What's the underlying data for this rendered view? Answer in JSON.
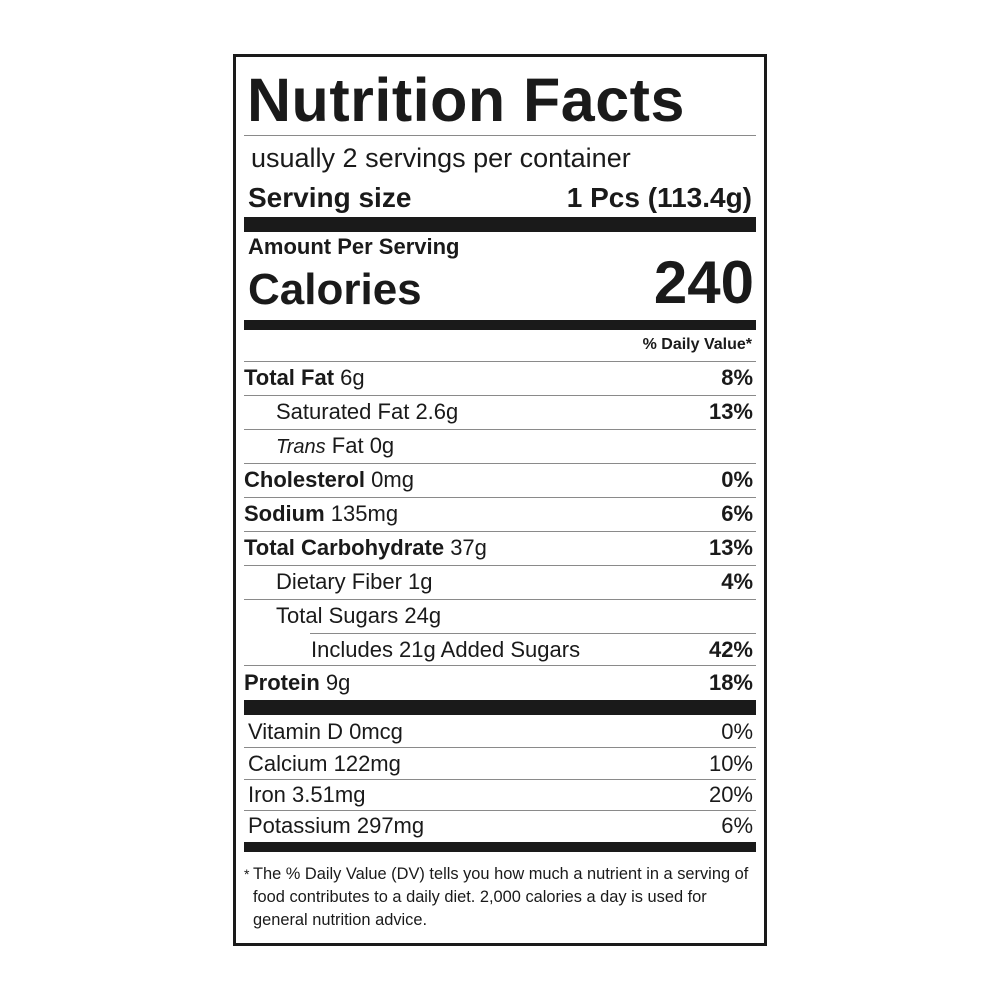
{
  "label": {
    "title": "Nutrition Facts",
    "servings_per_container": "usually 2 servings per container",
    "serving_size_label": "Serving size",
    "serving_size_value": "1 Pcs (113.4g)",
    "amount_per_serving": "Amount Per Serving",
    "calories_label": "Calories",
    "calories_value": "240",
    "daily_value_header": "% Daily Value*",
    "nutrients": [
      {
        "name": "Total Fat",
        "amount": "6g",
        "dv": "8%"
      },
      {
        "name": "Saturated Fat",
        "amount": "2.6g",
        "dv": "13%"
      },
      {
        "name": "Trans",
        "name_rest": "Fat",
        "amount": "0g",
        "dv": ""
      },
      {
        "name": "Cholesterol",
        "amount": "0mg",
        "dv": "0%"
      },
      {
        "name": "Sodium",
        "amount": "135mg",
        "dv": "6%"
      },
      {
        "name": "Total Carbohydrate",
        "amount": "37g",
        "dv": "13%"
      },
      {
        "name": "Dietary Fiber",
        "amount": "1g",
        "dv": "4%"
      },
      {
        "name": "Total Sugars",
        "amount": "24g",
        "dv": ""
      },
      {
        "name": "Includes 21g Added Sugars",
        "amount": "",
        "dv": "42%"
      },
      {
        "name": "Protein",
        "amount": "9g",
        "dv": "18%"
      }
    ],
    "vitamins": [
      {
        "name": "Vitamin D",
        "amount": "0mcg",
        "dv": "0%"
      },
      {
        "name": "Calcium",
        "amount": "122mg",
        "dv": "10%"
      },
      {
        "name": "Iron",
        "amount": "3.51mg",
        "dv": "20%"
      },
      {
        "name": "Potassium",
        "amount": "297mg",
        "dv": "6%"
      }
    ],
    "footnote_star": "*",
    "footnote": "The % Daily Value (DV) tells you how much a nutrient in a serving of food contributes to a daily diet. 2,000 calories a day is used for general nutrition advice."
  }
}
